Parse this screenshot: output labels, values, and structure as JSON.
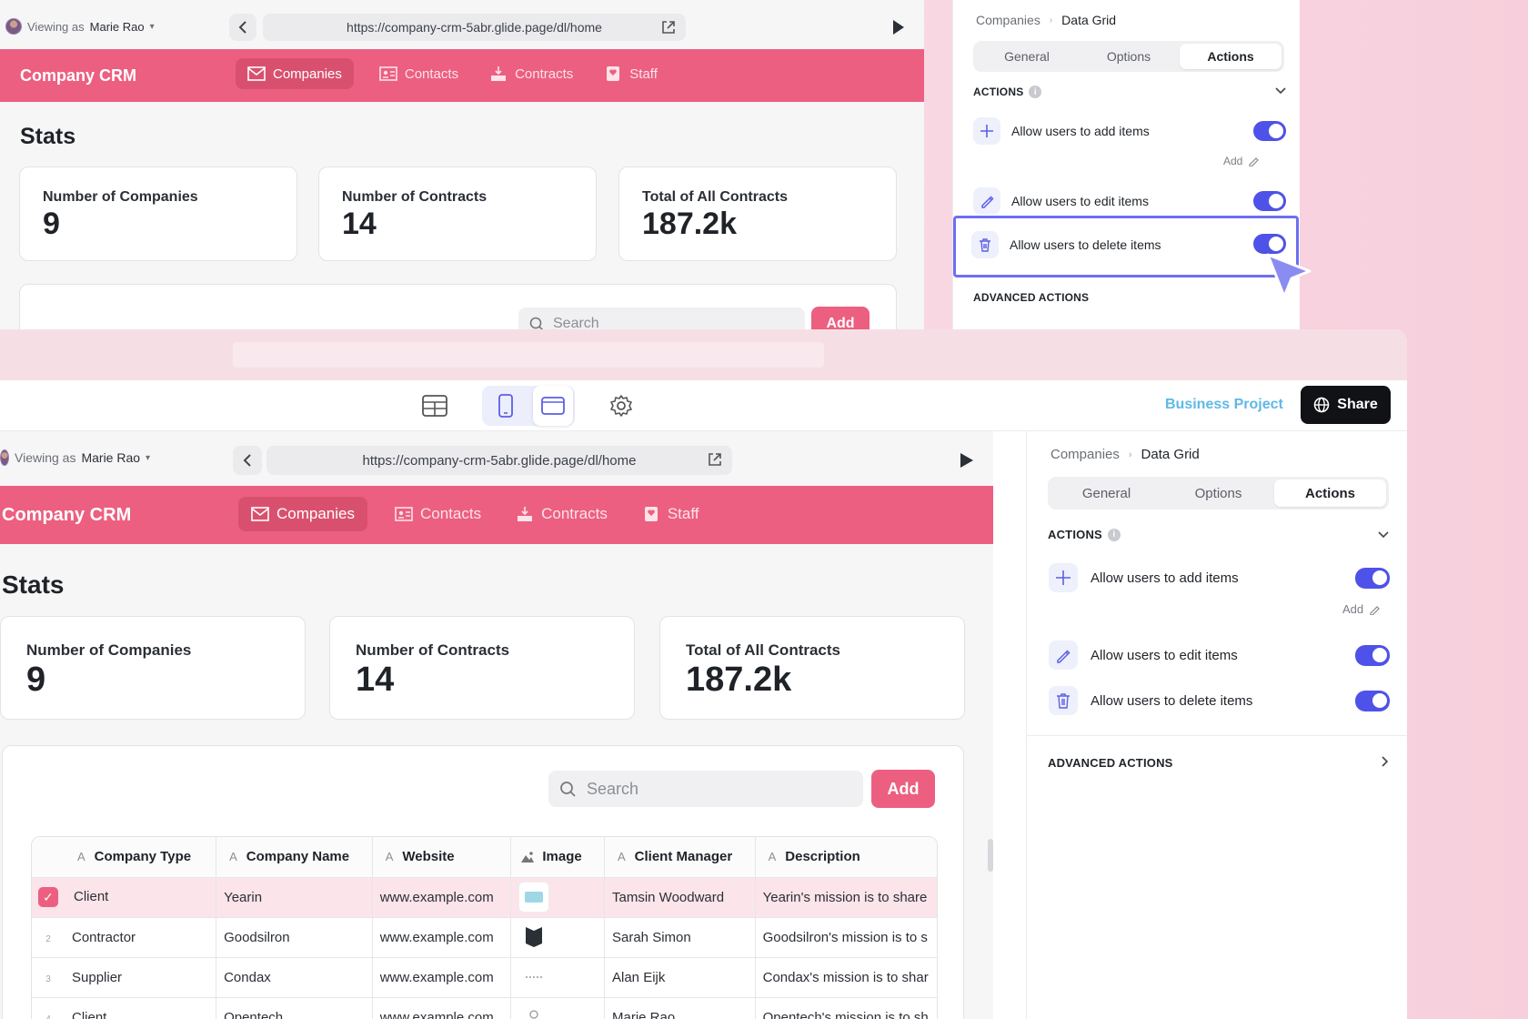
{
  "viewing": {
    "prefix": "Viewing as",
    "user": "Marie Rao"
  },
  "url": "https://company-crm-5abr.glide.page/dl/home",
  "crm": {
    "title": "Company CRM",
    "tabs": [
      {
        "label": "Companies",
        "active": true,
        "icon": "mail-icon"
      },
      {
        "label": "Contacts",
        "active": false,
        "icon": "contact-card-icon"
      },
      {
        "label": "Contracts",
        "active": false,
        "icon": "signature-icon"
      },
      {
        "label": "Staff",
        "active": false,
        "icon": "badge-icon"
      }
    ]
  },
  "stats": {
    "title": "Stats",
    "cards": [
      {
        "label": "Number of Companies",
        "value": "9"
      },
      {
        "label": "Number of Contracts",
        "value": "14"
      },
      {
        "label": "Total of All Contracts",
        "value": "187.2k"
      }
    ]
  },
  "search": {
    "placeholder": "Search"
  },
  "add_label": "Add",
  "panel": {
    "breadcrumb": {
      "parent": "Companies",
      "current": "Data Grid"
    },
    "tabs": [
      "General",
      "Options",
      "Actions"
    ],
    "active_tab": "Actions",
    "actions_title": "ACTIONS",
    "actions": [
      {
        "label": "Allow users to add items",
        "enabled": true,
        "icon": "plus-icon"
      },
      {
        "label": "Allow users to edit items",
        "enabled": true,
        "icon": "pencil-icon"
      },
      {
        "label": "Allow users to delete items",
        "enabled": true,
        "icon": "trash-icon"
      }
    ],
    "add_link": "Add",
    "advanced_title": "ADVANCED ACTIONS"
  },
  "toolbar": {
    "project": "Business Project",
    "share": "Share"
  },
  "table": {
    "columns": [
      {
        "label": "Company Type",
        "type": "A"
      },
      {
        "label": "Company Name",
        "type": "A"
      },
      {
        "label": "Website",
        "type": "A"
      },
      {
        "label": "Image",
        "type": "image"
      },
      {
        "label": "Client Manager",
        "type": "A"
      },
      {
        "label": "Description",
        "type": "A"
      }
    ],
    "rows": [
      {
        "num": "1",
        "type": "Client",
        "name": "Yearin",
        "website": "www.example.com",
        "manager": "Tamsin Woodward",
        "description": "Yearin's mission is to share",
        "selected": true
      },
      {
        "num": "2",
        "type": "Contractor",
        "name": "Goodsilron",
        "website": "www.example.com",
        "manager": "Sarah Simon",
        "description": "Goodsilron's mission is to s",
        "selected": false
      },
      {
        "num": "3",
        "type": "Supplier",
        "name": "Condax",
        "website": "www.example.com",
        "manager": "Alan Eijk",
        "description": "Condax's mission is to shar",
        "selected": false
      },
      {
        "num": "4",
        "type": "Client",
        "name": "Opentech",
        "website": "www.example.com",
        "manager": "Marie Rao",
        "description": "Opentech's mission is to sh",
        "selected": false
      }
    ]
  },
  "colors": {
    "brand": "#ec5f80",
    "accent": "#4f52e8",
    "project": "#5fb8e8"
  }
}
